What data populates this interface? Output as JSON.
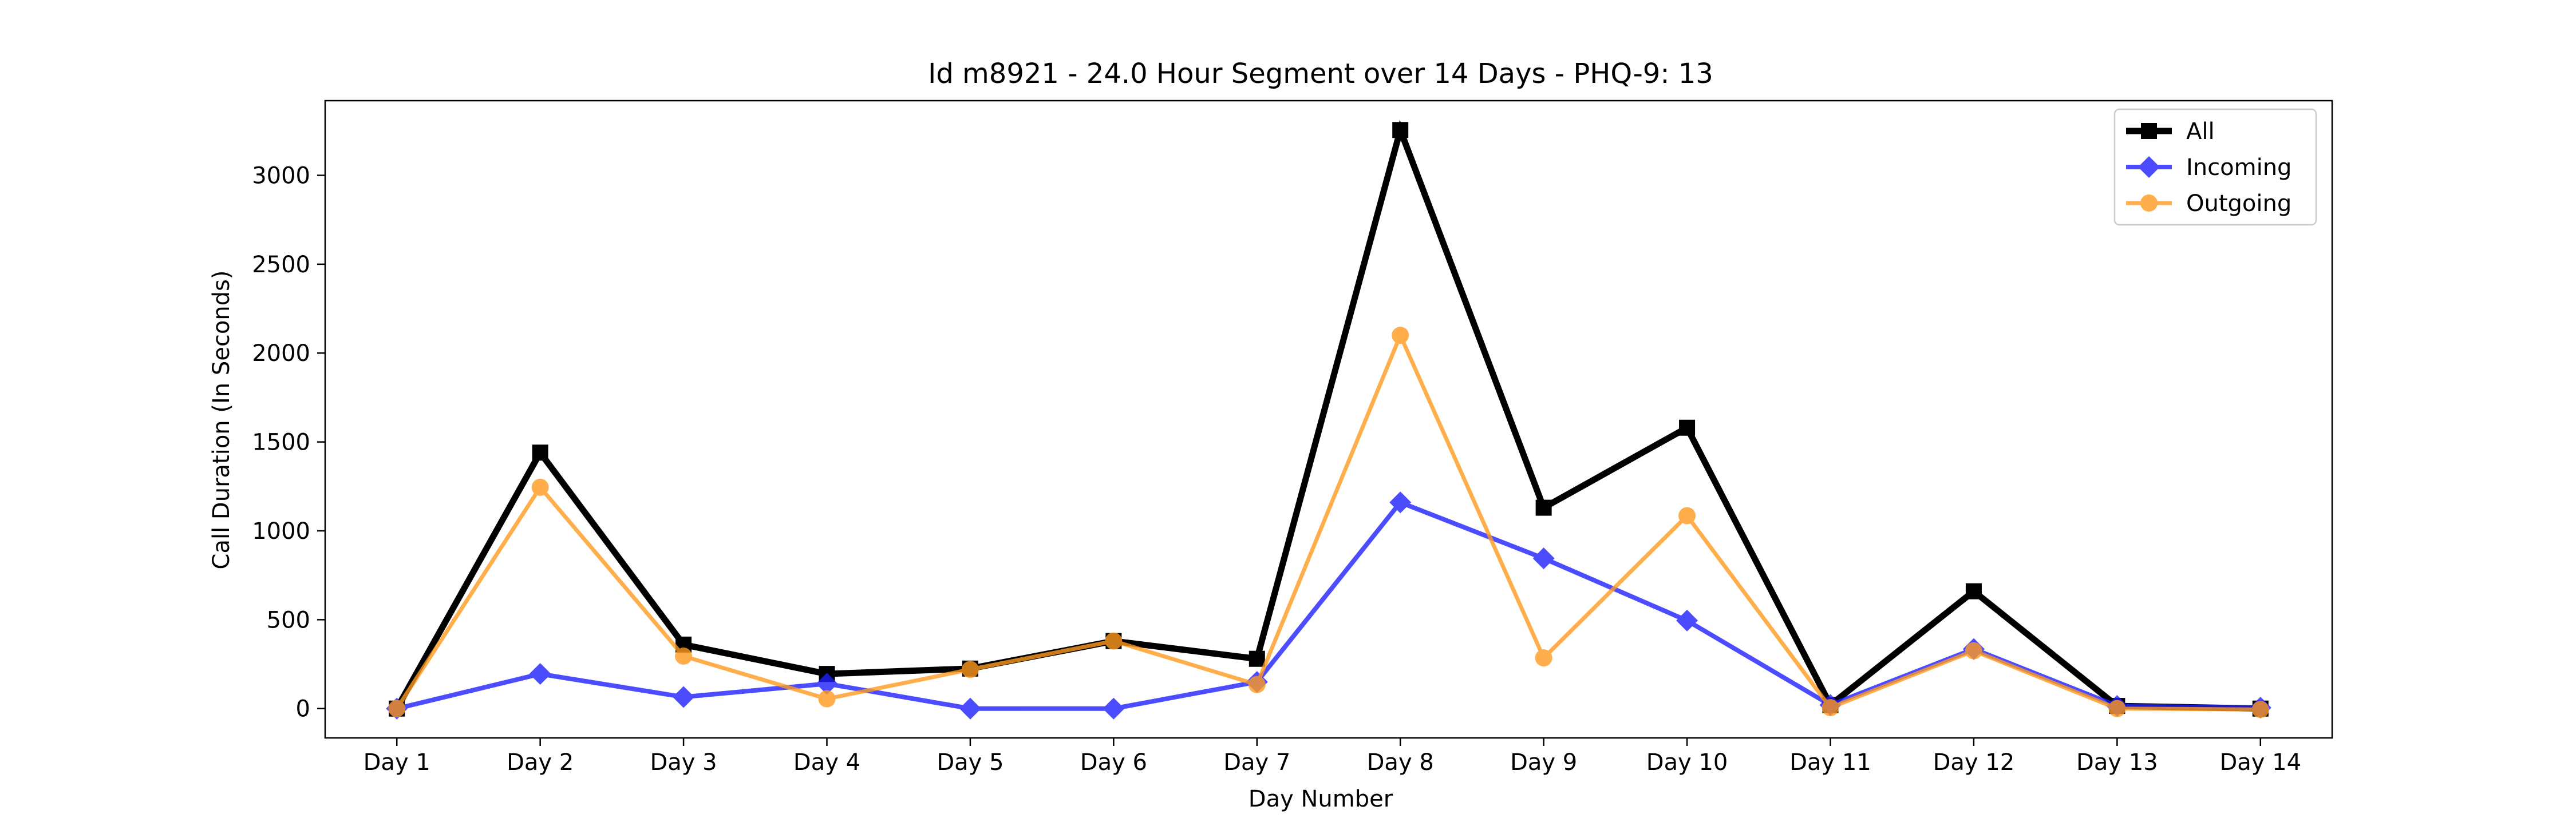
{
  "chart_data": {
    "type": "line",
    "title": "Id m8921 - 24.0 Hour Segment over 14 Days - PHQ-9: 13",
    "xlabel": "Day Number",
    "ylabel": "Call Duration (In Seconds)",
    "categories": [
      "Day 1",
      "Day 2",
      "Day 3",
      "Day 4",
      "Day 5",
      "Day 6",
      "Day 7",
      "Day 8",
      "Day 9",
      "Day 10",
      "Day 11",
      "Day 12",
      "Day 13",
      "Day 14"
    ],
    "ylim": [
      -165,
      3420
    ],
    "yticks": [
      0,
      500,
      1000,
      1500,
      2000,
      2500,
      3000
    ],
    "grid": false,
    "legend_position": "top-right",
    "series": [
      {
        "name": "All",
        "color": "#000000",
        "marker": "square",
        "values": [
          0,
          1440,
          360,
          195,
          225,
          380,
          280,
          3255,
          1130,
          1580,
          20,
          660,
          15,
          0
        ]
      },
      {
        "name": "Incoming",
        "color": "#2020ff",
        "marker": "diamond",
        "values": [
          0,
          195,
          65,
          140,
          0,
          0,
          150,
          1160,
          845,
          495,
          20,
          335,
          15,
          5
        ]
      },
      {
        "name": "Outgoing",
        "color": "#ff9a1f",
        "marker": "circle",
        "values": [
          0,
          1245,
          295,
          55,
          220,
          380,
          135,
          2100,
          285,
          1085,
          5,
          325,
          0,
          -5
        ]
      }
    ]
  }
}
